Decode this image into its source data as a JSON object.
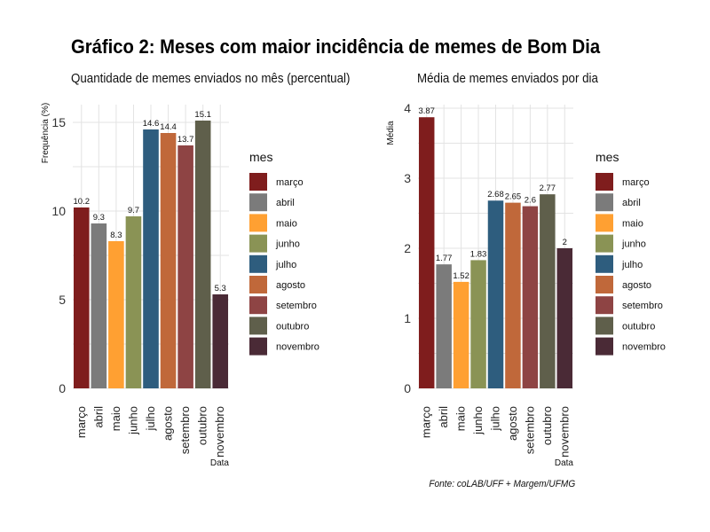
{
  "title": "Gráfico 2: Meses com maior incidência de memes de Bom Dia",
  "source": "Fonte: coLAB/UFF + Margem/UFMG",
  "colors": {
    "março": "#7f1d1d",
    "abril": "#7b7b7b",
    "maio": "#ffa032",
    "junho": "#8a9355",
    "julho": "#2e5d7e",
    "agosto": "#c0683a",
    "setembro": "#8e4444",
    "outubro": "#5f5f4b",
    "novembro": "#4a2a36"
  },
  "chart_data": [
    {
      "type": "bar",
      "title": "Quantidade de memes enviados no mês (percentual)",
      "xlabel": "Data",
      "ylabel": "Frequência (%)",
      "categories": [
        "março",
        "abril",
        "maio",
        "junho",
        "julho",
        "agosto",
        "setembro",
        "outubro",
        "novembro"
      ],
      "values": [
        10.2,
        9.3,
        8.3,
        9.7,
        14.6,
        14.4,
        13.7,
        15.1,
        5.3
      ],
      "value_labels": [
        "10.2",
        "9.3",
        "8.3",
        "9.7",
        "14.6",
        "14.4",
        "13.7",
        "15.1",
        "5.3"
      ],
      "ylim": [
        0,
        16
      ],
      "yticks": [
        0,
        5,
        10,
        15
      ],
      "grid": true,
      "legend": {
        "title": "mes",
        "position": "right"
      }
    },
    {
      "type": "bar",
      "title": "Média de memes enviados por dia",
      "xlabel": "Data",
      "ylabel": "Média",
      "categories": [
        "março",
        "abril",
        "maio",
        "junho",
        "julho",
        "agosto",
        "setembro",
        "outubro",
        "novembro"
      ],
      "values": [
        3.87,
        1.77,
        1.52,
        1.83,
        2.68,
        2.65,
        2.6,
        2.77,
        2
      ],
      "value_labels": [
        "3.87",
        "1.77",
        "1.52",
        "1.83",
        "2.68",
        "2.65",
        "2.6",
        "2.77",
        "2"
      ],
      "ylim": [
        0,
        4.05
      ],
      "yticks": [
        0,
        1,
        2,
        3,
        4
      ],
      "grid": true,
      "legend": {
        "title": "mes",
        "position": "right"
      }
    }
  ]
}
